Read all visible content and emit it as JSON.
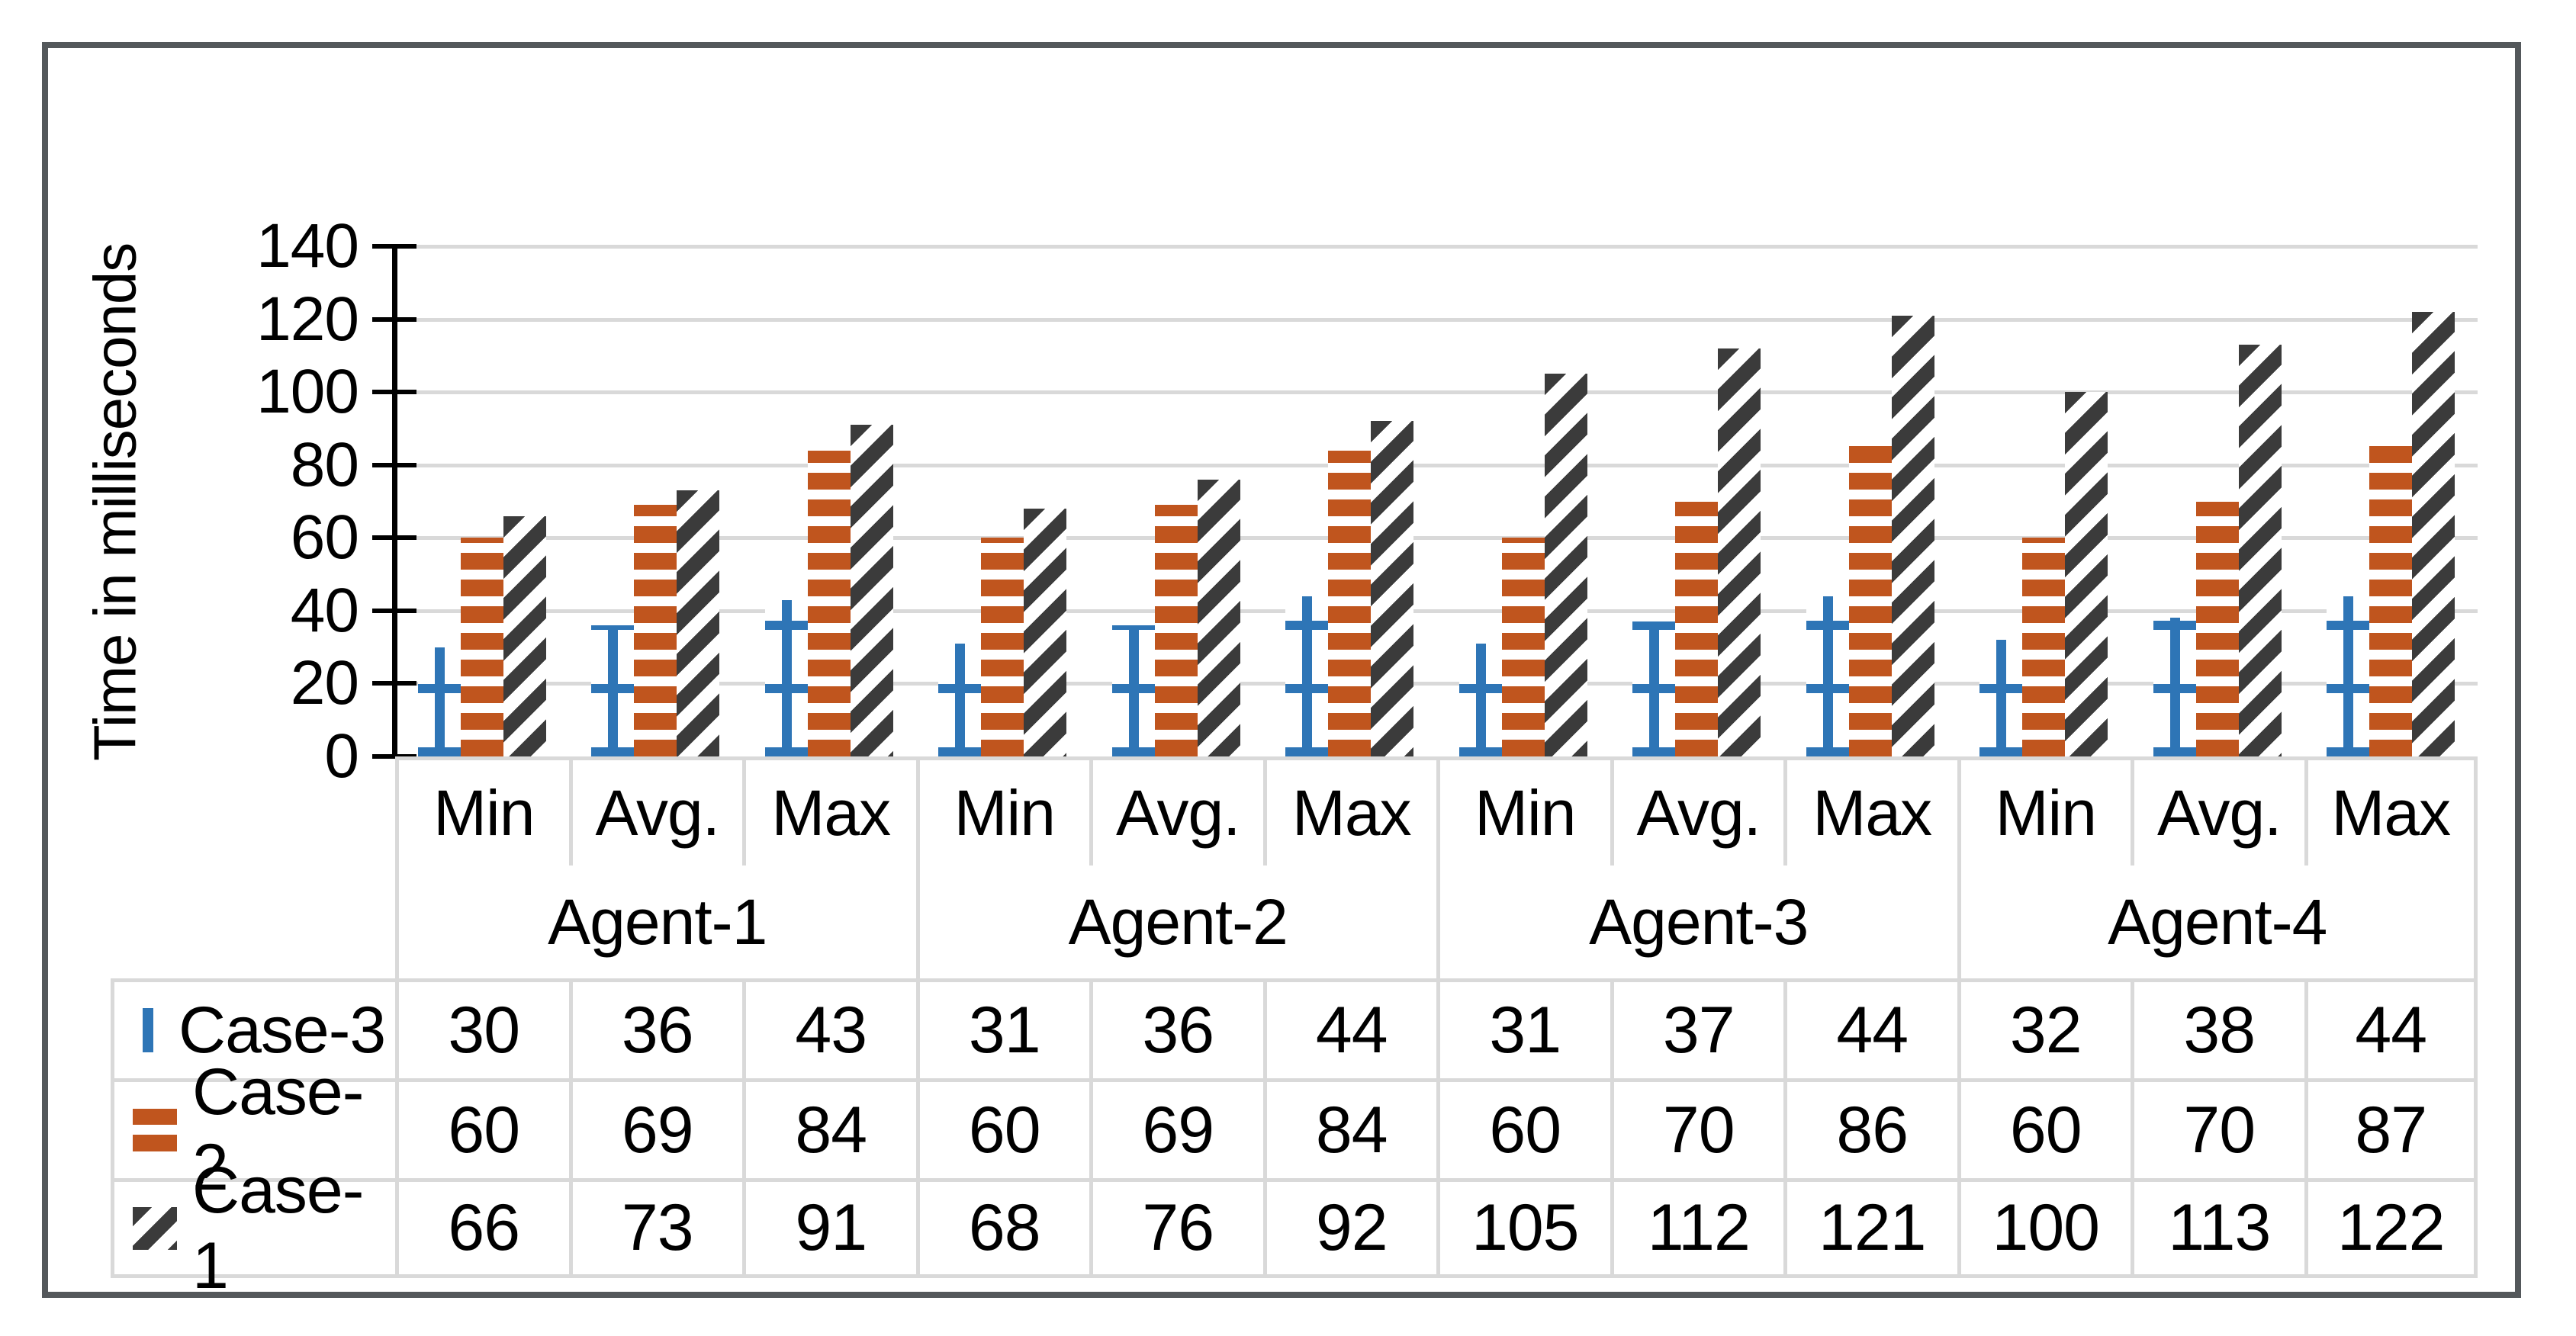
{
  "chart_data": {
    "type": "bar",
    "title": "",
    "xlabel": "",
    "ylabel": "Time in milliseconds",
    "ylim": [
      0,
      140
    ],
    "yticks": [
      0,
      20,
      40,
      60,
      80,
      100,
      120,
      140
    ],
    "grid": true,
    "legend_position": "data-table-row-headers",
    "groups": [
      "Agent-1",
      "Agent-2",
      "Agent-3",
      "Agent-4"
    ],
    "subcategories": [
      "Min",
      "Avg.",
      "Max"
    ],
    "categories": [
      "Min",
      "Avg.",
      "Max",
      "Min",
      "Avg.",
      "Max",
      "Min",
      "Avg.",
      "Max",
      "Min",
      "Avg.",
      "Max"
    ],
    "series": [
      {
        "name": "Case-3",
        "color": "#2E75B6",
        "pattern": "grid-lines",
        "values": [
          30,
          36,
          43,
          31,
          36,
          44,
          31,
          37,
          44,
          32,
          38,
          44
        ]
      },
      {
        "name": "Case-2",
        "color": "#C0551E",
        "pattern": "horizontal-stripes",
        "values": [
          60,
          69,
          84,
          60,
          69,
          84,
          60,
          70,
          86,
          60,
          70,
          87
        ]
      },
      {
        "name": "Case-1",
        "color": "#3B3B3B",
        "pattern": "diagonal-stripes",
        "values": [
          66,
          73,
          91,
          68,
          76,
          92,
          105,
          112,
          121,
          100,
          113,
          122
        ]
      }
    ],
    "data_table_row_order": [
      "Case-3",
      "Case-2",
      "Case-1"
    ]
  },
  "colors": {
    "case3_blue": "#2E75B6",
    "case2_orange": "#C0551E",
    "case1_dark": "#3B3B3B",
    "gridline": "#D9D9D9",
    "table_border": "#D9D9D9",
    "axis": "#000000",
    "text": "#000000",
    "frame_border": "#54585B",
    "background": "#FFFFFF"
  }
}
